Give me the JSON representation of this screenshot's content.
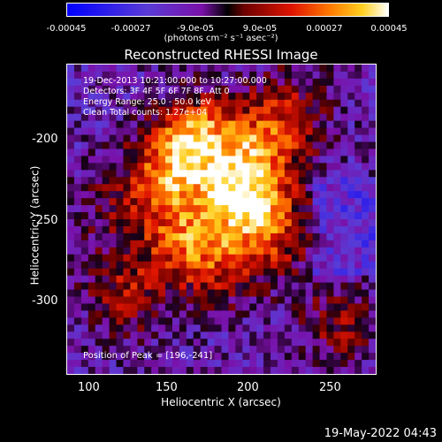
{
  "colorbar": {
    "ticks": [
      "-0.00045",
      "-0.00027",
      "-9.0e-05",
      "9.0e-05",
      "0.00027",
      "0.00045"
    ],
    "unit": "(photons cm⁻² s⁻¹ asec⁻²)",
    "range": [
      -0.00045,
      0.00045
    ]
  },
  "chart_data": {
    "type": "heatmap",
    "title": "Reconstructed RHESSI Image",
    "xlabel": "Heliocentric X (arcsec)",
    "ylabel": "Heliocentric Y (arcsec)",
    "xlim": [
      88,
      278
    ],
    "ylim": [
      -350,
      -160
    ],
    "xticks": [
      100,
      150,
      200,
      250
    ],
    "yticks": [
      -200,
      -250,
      -300
    ],
    "peak": {
      "x": 196,
      "y": -241
    },
    "sources": [
      {
        "x": 170,
        "y": -205,
        "amp": 1.0
      },
      {
        "x": 196,
        "y": -241,
        "amp": 1.15
      },
      {
        "x": 150,
        "y": -225,
        "amp": 0.8
      },
      {
        "x": 210,
        "y": -210,
        "amp": 0.7
      },
      {
        "x": 160,
        "y": -265,
        "amp": 0.75
      },
      {
        "x": 215,
        "y": -265,
        "amp": 0.6
      },
      {
        "x": 125,
        "y": -300,
        "amp": 0.55
      },
      {
        "x": 180,
        "y": -285,
        "amp": 0.5
      },
      {
        "x": 255,
        "y": -320,
        "amp": 0.45
      },
      {
        "x": 225,
        "y": -185,
        "amp": 0.4
      },
      {
        "x": 120,
        "y": -250,
        "amp": 0.35
      }
    ]
  },
  "annotations": {
    "time_range": "19-Dec-2013 10:21:00.000 to 10:27:00.000",
    "detectors": "Detectors: 3F 4F 5F 6F 7F 8F, Att 0",
    "energy": "Energy Range: 25.0 - 50.0 keV",
    "method": "Clean     Total counts: 1.27e+04",
    "peak_label": "Position of Peak = [196,-241]"
  },
  "labels": {
    "x_ticks": [
      "100",
      "150",
      "200",
      "250"
    ],
    "y_ticks": [
      "-200",
      "-250",
      "-300"
    ]
  },
  "footer": {
    "date": "19-May-2022 04:43"
  }
}
